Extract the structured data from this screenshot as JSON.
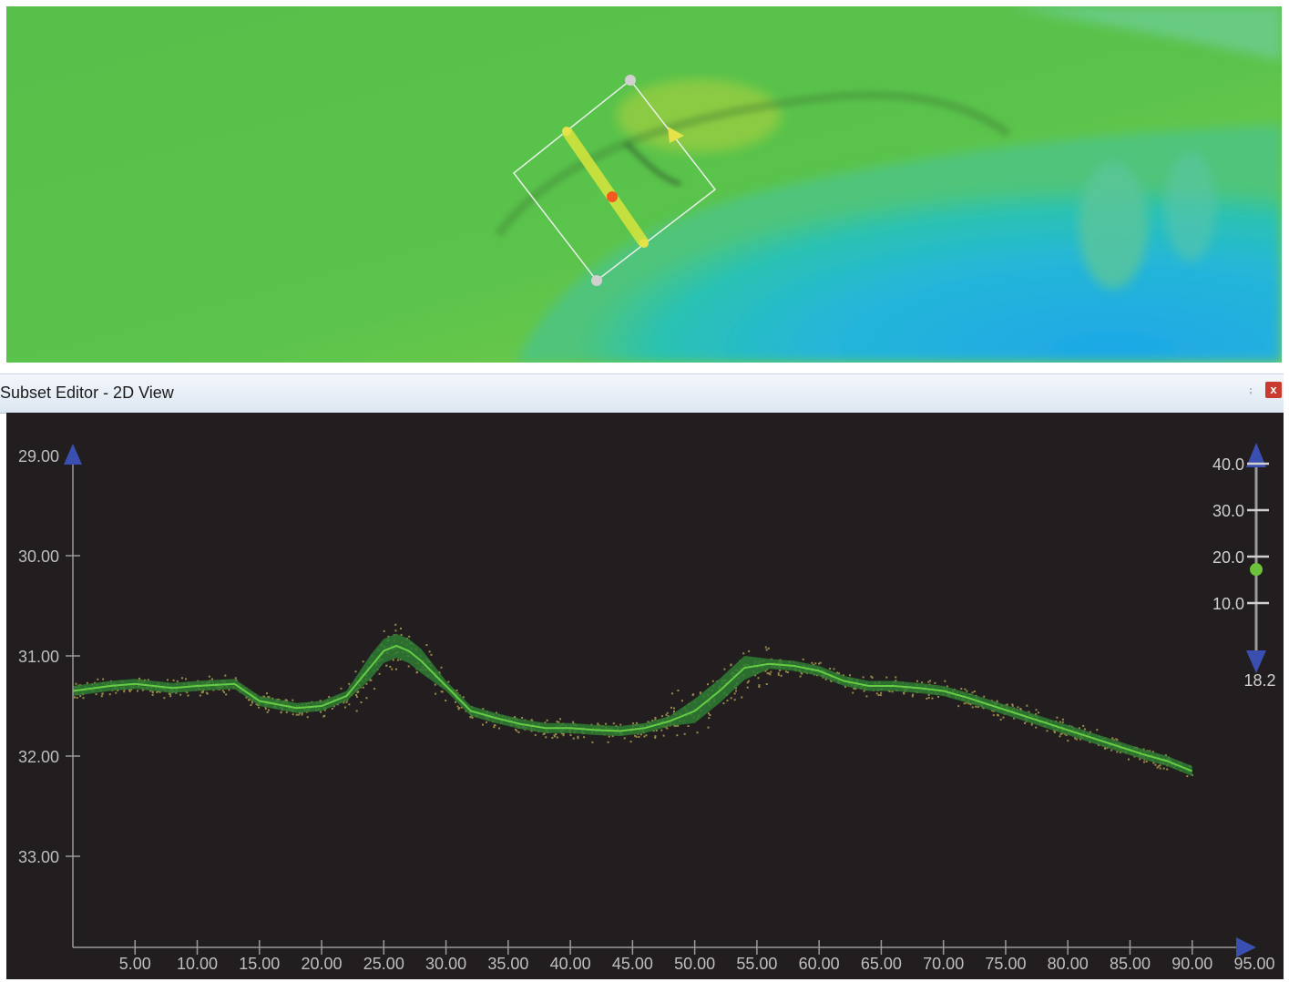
{
  "panel": {
    "title": "Subset Editor - 2D View",
    "pin_icon": "pin-icon",
    "close_icon": "close-icon",
    "close_label": "x",
    "accent_close": "#c93a2f"
  },
  "map": {
    "selection_handles": [
      "corner-handle",
      "end-handle",
      "center-handle",
      "direction-arrow"
    ]
  },
  "chart_data": {
    "type": "scatter",
    "xlim": [
      0,
      95
    ],
    "ylim": [
      29,
      34
    ],
    "y_inverted": true,
    "x_ticks": [
      "5.00",
      "10.00",
      "15.00",
      "20.00",
      "25.00",
      "30.00",
      "35.00",
      "40.00",
      "45.00",
      "50.00",
      "55.00",
      "60.00",
      "65.00",
      "70.00",
      "75.00",
      "80.00",
      "85.00",
      "90.00",
      "95.00"
    ],
    "x_tick_values": [
      5,
      10,
      15,
      20,
      25,
      30,
      35,
      40,
      45,
      50,
      55,
      60,
      65,
      70,
      75,
      80,
      85,
      90,
      95
    ],
    "y_ticks": [
      "29.00",
      "30.00",
      "31.00",
      "32.00",
      "33.00"
    ],
    "y_tick_values": [
      29,
      30,
      31,
      32,
      33
    ],
    "profile": {
      "x": [
        0,
        3,
        5,
        8,
        10,
        13,
        15,
        18,
        20,
        22,
        24,
        25,
        26,
        27,
        28,
        30,
        32,
        34,
        36,
        38,
        40,
        42,
        44,
        46,
        48,
        50,
        52,
        54,
        56,
        58,
        60,
        62,
        64,
        66,
        68,
        70,
        72,
        74,
        76,
        78,
        80,
        82,
        84,
        86,
        88,
        90
      ],
      "y": [
        31.35,
        31.3,
        31.28,
        31.32,
        31.3,
        31.28,
        31.45,
        31.52,
        31.5,
        31.4,
        31.1,
        30.95,
        30.9,
        30.95,
        31.05,
        31.3,
        31.55,
        31.62,
        31.68,
        31.72,
        31.72,
        31.74,
        31.75,
        31.72,
        31.65,
        31.55,
        31.35,
        31.12,
        31.08,
        31.1,
        31.15,
        31.25,
        31.3,
        31.3,
        31.32,
        31.35,
        31.42,
        31.5,
        31.58,
        31.66,
        31.74,
        31.82,
        31.9,
        31.98,
        32.05,
        32.15
      ]
    },
    "colors": {
      "points": "#9a8a4a",
      "fill": "#2e7d32",
      "line": "#66cc44",
      "background": "#221e1f",
      "axis": "#9a9a9a"
    },
    "grid": false
  },
  "slider": {
    "ticks": [
      "40.0",
      "30.0",
      "20.0",
      "10.0"
    ],
    "tick_values": [
      40,
      30,
      20,
      10
    ],
    "range": [
      0,
      40
    ],
    "value": 18.2,
    "value_label": "18.2",
    "up_icon": "arrow-up-icon",
    "down_icon": "arrow-down-icon"
  }
}
